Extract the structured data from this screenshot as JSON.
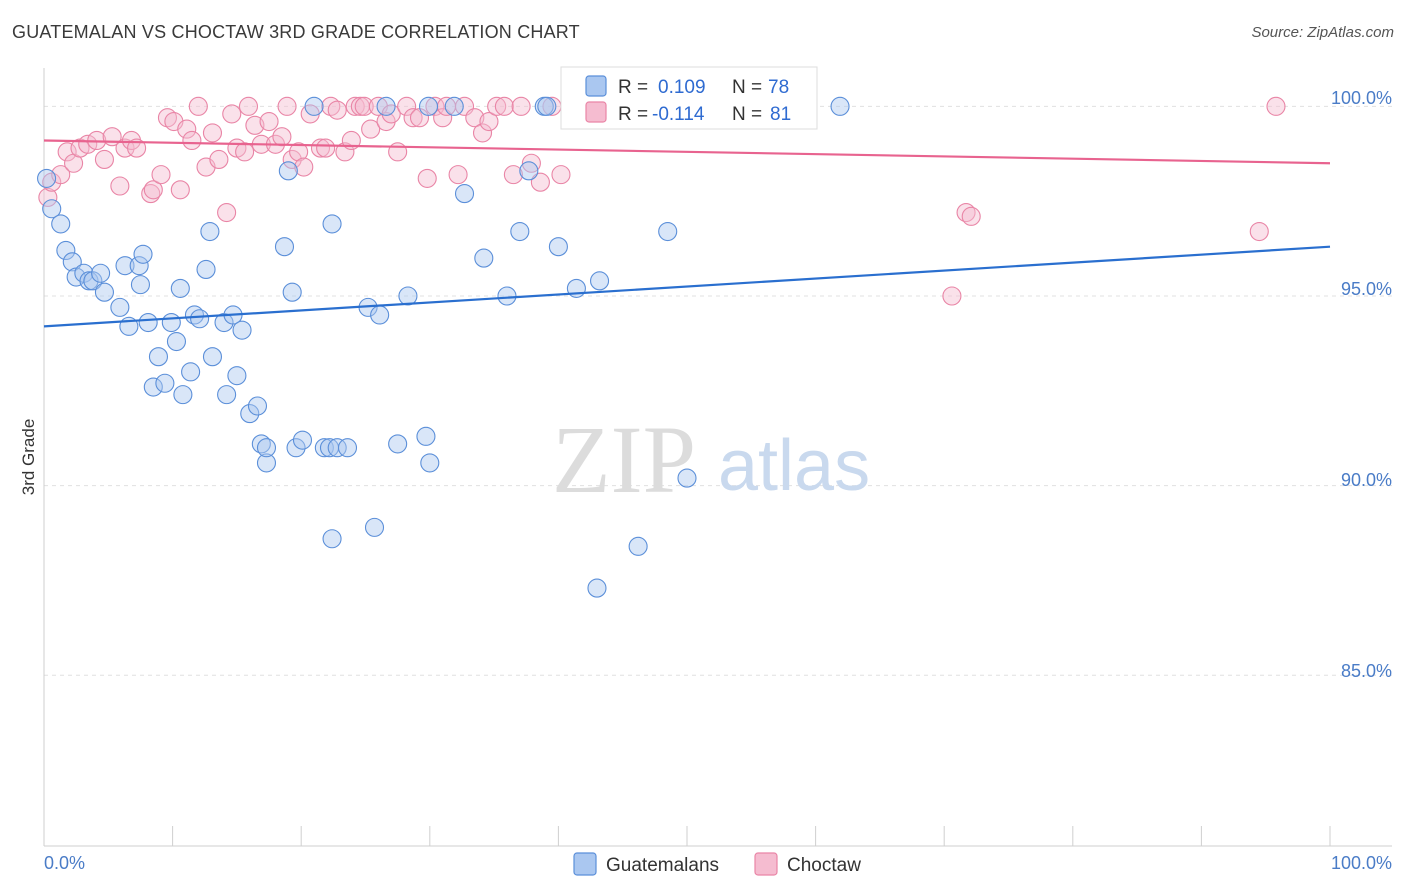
{
  "title": "GUATEMALAN VS CHOCTAW 3RD GRADE CORRELATION CHART",
  "source": "Source: ZipAtlas.com",
  "colors": {
    "blue": "#5b8fd9",
    "blue_fill": "#aac7f0",
    "blue_line": "#2a6fcf",
    "pink": "#e985a6",
    "pink_fill": "#f5bcd0",
    "pink_line": "#e8638f",
    "tick_color": "#4a7cc7",
    "grid": "#e0e0e0"
  },
  "legend": {
    "rows": [
      {
        "r_label": "R =",
        "r_value": "0.109",
        "n_label": "N =",
        "n_value": "78"
      },
      {
        "r_label": "R =",
        "r_value": "-0.114",
        "n_label": "N =",
        "n_value": "81"
      }
    ]
  },
  "bottom_legend": {
    "items": [
      "Guatemalans",
      "Choctaw"
    ]
  },
  "watermark": {
    "zip": "ZIP",
    "atlas": "atlas"
  },
  "chart_data": {
    "type": "scatter",
    "ylabel": "3rd Grade",
    "x_tick_labels": [
      "0.0%",
      "100.0%"
    ],
    "y_tick_labels": [
      "100.0%",
      "95.0%",
      "90.0%",
      "85.0%"
    ],
    "xlim": [
      0,
      100
    ],
    "ylim": [
      80.5,
      100.8
    ],
    "series": [
      {
        "name": "Guatemalans",
        "trend": {
          "x": [
            0,
            100
          ],
          "y": [
            94.2,
            96.3
          ]
        },
        "points": [
          [
            0.2,
            98.1
          ],
          [
            0.6,
            97.3
          ],
          [
            1.3,
            96.9
          ],
          [
            1.7,
            96.2
          ],
          [
            2.2,
            95.9
          ],
          [
            2.5,
            95.5
          ],
          [
            3.1,
            95.6
          ],
          [
            3.5,
            95.4
          ],
          [
            3.8,
            95.4
          ],
          [
            4.4,
            95.6
          ],
          [
            4.7,
            95.1
          ],
          [
            5.9,
            94.7
          ],
          [
            6.3,
            95.8
          ],
          [
            6.6,
            94.2
          ],
          [
            7.4,
            95.8
          ],
          [
            7.5,
            95.3
          ],
          [
            7.7,
            96.1
          ],
          [
            8.1,
            94.3
          ],
          [
            8.5,
            92.6
          ],
          [
            8.9,
            93.4
          ],
          [
            9.4,
            92.7
          ],
          [
            9.9,
            94.3
          ],
          [
            10.3,
            93.8
          ],
          [
            10.6,
            95.2
          ],
          [
            10.8,
            92.4
          ],
          [
            11.4,
            93.0
          ],
          [
            11.7,
            94.5
          ],
          [
            12.1,
            94.4
          ],
          [
            12.6,
            95.7
          ],
          [
            12.9,
            96.7
          ],
          [
            13.1,
            93.4
          ],
          [
            14.0,
            94.3
          ],
          [
            14.2,
            92.4
          ],
          [
            14.7,
            94.5
          ],
          [
            15.0,
            92.9
          ],
          [
            15.4,
            94.1
          ],
          [
            16.0,
            91.9
          ],
          [
            16.6,
            92.1
          ],
          [
            16.9,
            91.1
          ],
          [
            17.3,
            90.6
          ],
          [
            17.3,
            91.0
          ],
          [
            18.7,
            96.3
          ],
          [
            19.0,
            98.3
          ],
          [
            19.3,
            95.1
          ],
          [
            19.6,
            91.0
          ],
          [
            20.1,
            91.2
          ],
          [
            21.0,
            100.0
          ],
          [
            21.8,
            91.0
          ],
          [
            22.2,
            91.0
          ],
          [
            22.4,
            88.6
          ],
          [
            22.4,
            96.9
          ],
          [
            22.8,
            91.0
          ],
          [
            23.6,
            91.0
          ],
          [
            25.2,
            94.7
          ],
          [
            25.7,
            88.9
          ],
          [
            26.1,
            94.5
          ],
          [
            26.6,
            100.0
          ],
          [
            27.5,
            91.1
          ],
          [
            28.3,
            95.0
          ],
          [
            29.7,
            91.3
          ],
          [
            29.9,
            100.0
          ],
          [
            30.0,
            90.6
          ],
          [
            31.9,
            100.0
          ],
          [
            32.7,
            97.7
          ],
          [
            34.2,
            96.0
          ],
          [
            36.0,
            95.0
          ],
          [
            37.0,
            96.7
          ],
          [
            37.7,
            98.3
          ],
          [
            38.9,
            100.0
          ],
          [
            39.1,
            100.0
          ],
          [
            40.0,
            96.3
          ],
          [
            41.4,
            95.2
          ],
          [
            43.0,
            87.3
          ],
          [
            43.2,
            95.4
          ],
          [
            46.2,
            88.4
          ],
          [
            48.5,
            96.7
          ],
          [
            50.0,
            90.2
          ],
          [
            61.9,
            100.0
          ]
        ]
      },
      {
        "name": "Choctaw",
        "trend": {
          "x": [
            0,
            100
          ],
          "y": [
            99.1,
            98.5
          ]
        },
        "points": [
          [
            0.3,
            97.6
          ],
          [
            0.6,
            98.0
          ],
          [
            1.3,
            98.2
          ],
          [
            1.8,
            98.8
          ],
          [
            2.3,
            98.5
          ],
          [
            2.8,
            98.9
          ],
          [
            3.4,
            99.0
          ],
          [
            4.1,
            99.1
          ],
          [
            4.7,
            98.6
          ],
          [
            5.3,
            99.2
          ],
          [
            5.9,
            97.9
          ],
          [
            6.3,
            98.9
          ],
          [
            6.8,
            99.1
          ],
          [
            7.2,
            98.9
          ],
          [
            8.3,
            97.7
          ],
          [
            8.5,
            97.8
          ],
          [
            9.1,
            98.2
          ],
          [
            9.6,
            99.7
          ],
          [
            10.1,
            99.6
          ],
          [
            10.6,
            97.8
          ],
          [
            11.1,
            99.4
          ],
          [
            11.5,
            99.1
          ],
          [
            12.0,
            100.0
          ],
          [
            12.6,
            98.4
          ],
          [
            13.1,
            99.3
          ],
          [
            13.6,
            98.6
          ],
          [
            14.2,
            97.2
          ],
          [
            14.6,
            99.8
          ],
          [
            15.0,
            98.9
          ],
          [
            15.6,
            98.8
          ],
          [
            15.9,
            100.0
          ],
          [
            16.4,
            99.5
          ],
          [
            16.9,
            99.0
          ],
          [
            17.5,
            99.6
          ],
          [
            18.0,
            99.0
          ],
          [
            18.5,
            99.2
          ],
          [
            18.9,
            100.0
          ],
          [
            19.3,
            98.6
          ],
          [
            19.8,
            98.8
          ],
          [
            20.2,
            98.4
          ],
          [
            20.7,
            99.8
          ],
          [
            21.5,
            98.9
          ],
          [
            21.9,
            98.9
          ],
          [
            22.3,
            100.0
          ],
          [
            22.8,
            99.9
          ],
          [
            23.4,
            98.8
          ],
          [
            23.9,
            99.1
          ],
          [
            24.2,
            100.0
          ],
          [
            24.6,
            100.0
          ],
          [
            24.9,
            100.0
          ],
          [
            25.4,
            99.4
          ],
          [
            26.0,
            100.0
          ],
          [
            26.6,
            99.6
          ],
          [
            27.0,
            99.8
          ],
          [
            27.5,
            98.8
          ],
          [
            28.2,
            100.0
          ],
          [
            28.7,
            99.7
          ],
          [
            29.2,
            99.7
          ],
          [
            29.8,
            98.1
          ],
          [
            30.4,
            100.0
          ],
          [
            31.0,
            99.7
          ],
          [
            31.3,
            100.0
          ],
          [
            32.2,
            98.2
          ],
          [
            32.7,
            100.0
          ],
          [
            33.5,
            99.7
          ],
          [
            34.1,
            99.3
          ],
          [
            34.6,
            99.6
          ],
          [
            35.2,
            100.0
          ],
          [
            35.8,
            100.0
          ],
          [
            36.5,
            98.2
          ],
          [
            37.1,
            100.0
          ],
          [
            37.9,
            98.5
          ],
          [
            38.6,
            98.0
          ],
          [
            39.5,
            100.0
          ],
          [
            40.2,
            98.2
          ],
          [
            45.4,
            100.0
          ],
          [
            70.6,
            95.0
          ],
          [
            71.7,
            97.2
          ],
          [
            72.1,
            97.1
          ],
          [
            94.5,
            96.7
          ],
          [
            95.8,
            100.0
          ]
        ]
      }
    ]
  }
}
